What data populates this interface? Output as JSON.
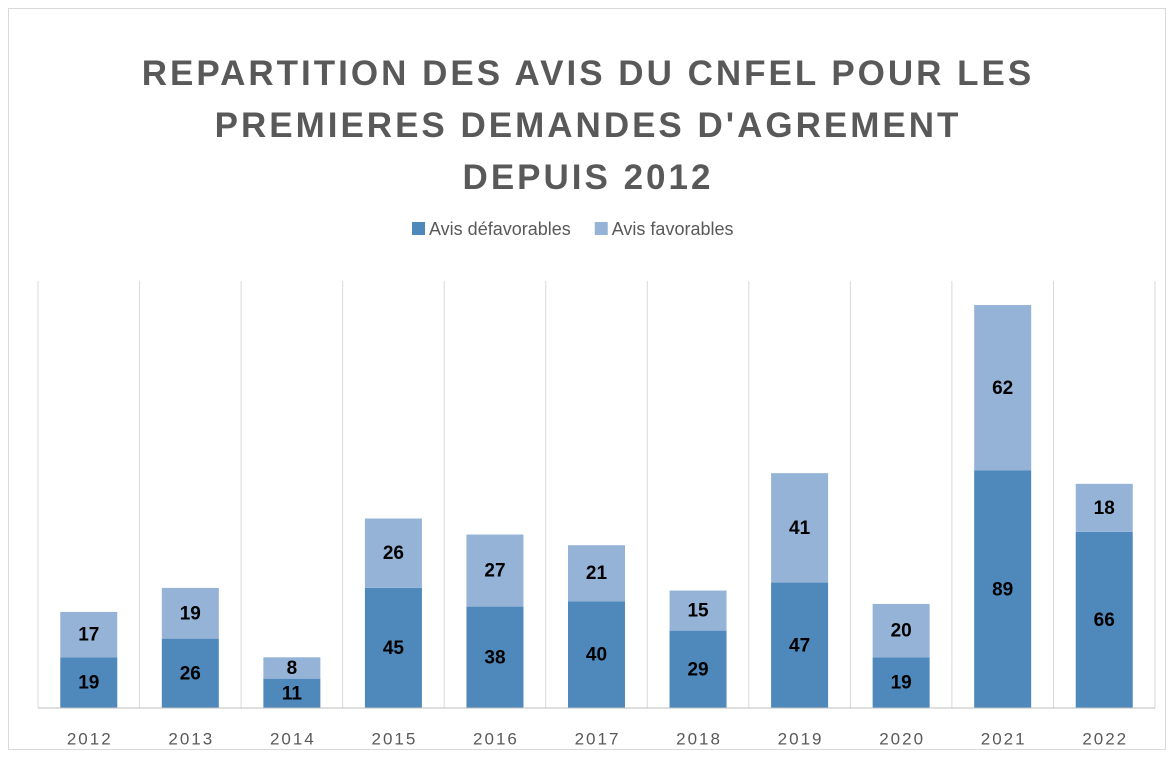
{
  "chart_data": {
    "type": "stacked_bar",
    "title": "REPARTITION DES AVIS DU CNFEL POUR LES PREMIERES DEMANDES D'AGREMENT DEPUIS 2012",
    "categories": [
      "2012",
      "2013",
      "2014",
      "2015",
      "2016",
      "2017",
      "2018",
      "2019",
      "2020",
      "2021",
      "2022"
    ],
    "series": [
      {
        "name": "Avis défavorables",
        "color": "#4f88bb",
        "values": [
          19,
          26,
          11,
          45,
          38,
          40,
          29,
          47,
          19,
          89,
          66
        ]
      },
      {
        "name": "Avis favorables",
        "color": "#95b3d7",
        "values": [
          17,
          19,
          8,
          26,
          27,
          21,
          15,
          41,
          20,
          62,
          18
        ]
      }
    ],
    "ylim": [
      0,
      160
    ],
    "legend": "top"
  }
}
